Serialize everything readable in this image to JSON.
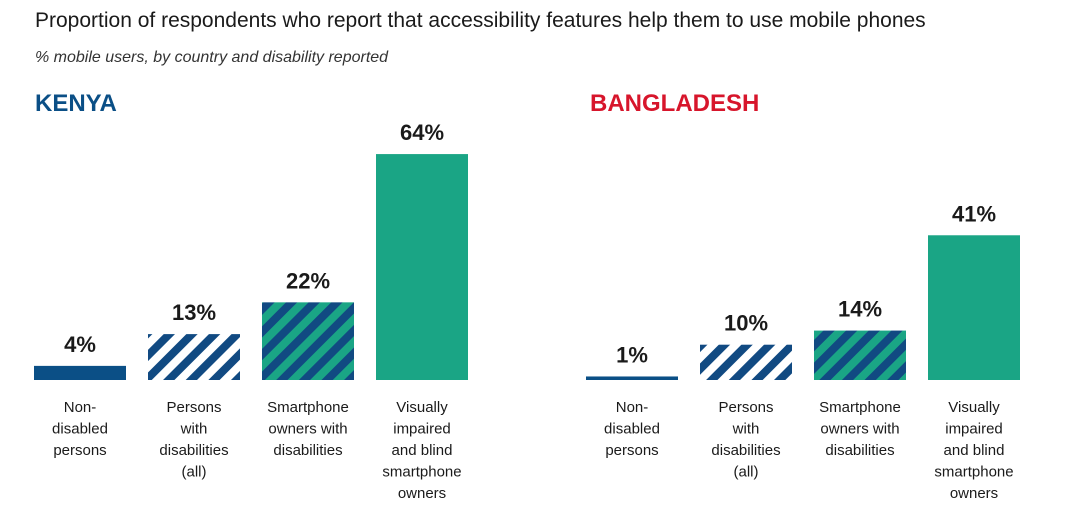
{
  "title": "Proportion of respondents who report that accessibility features help them to use mobile phones",
  "subtitle": "% mobile users, by country and disability reported",
  "chart_data": [
    {
      "type": "bar",
      "title": "KENYA",
      "title_color": "#0b4f86",
      "categories": [
        "Non-\ndisabled\npersons",
        "Persons\nwith\ndisabilities\n(all)",
        "Smartphone\nowners with\ndisabilities",
        "Visually\nimpaired\nand blind\nsmartphone\nowners"
      ],
      "values": [
        4,
        13,
        22,
        64
      ],
      "value_labels": [
        "4%",
        "13%",
        "22%",
        "64%"
      ],
      "bar_styles": [
        {
          "color": "#0b4f86"
        },
        {
          "color": "#ffffff",
          "hatch": "#114a82"
        },
        {
          "color": "#1aa585",
          "hatch": "#114a82"
        },
        {
          "color": "#1aa585"
        }
      ]
    },
    {
      "type": "bar",
      "title": "BANGLADESH",
      "title_color": "#d7152b",
      "categories": [
        "Non-\ndisabled\npersons",
        "Persons\nwith\ndisabilities\n(all)",
        "Smartphone\nowners with\ndisabilities",
        "Visually\nimpaired\nand blind\nsmartphone\nowners"
      ],
      "values": [
        1,
        10,
        14,
        41
      ],
      "value_labels": [
        "1%",
        "10%",
        "14%",
        "41%"
      ],
      "bar_styles": [
        {
          "color": "#0b4f86"
        },
        {
          "color": "#ffffff",
          "hatch": "#114a82"
        },
        {
          "color": "#1aa585",
          "hatch": "#114a82"
        },
        {
          "color": "#1aa585"
        }
      ]
    }
  ]
}
